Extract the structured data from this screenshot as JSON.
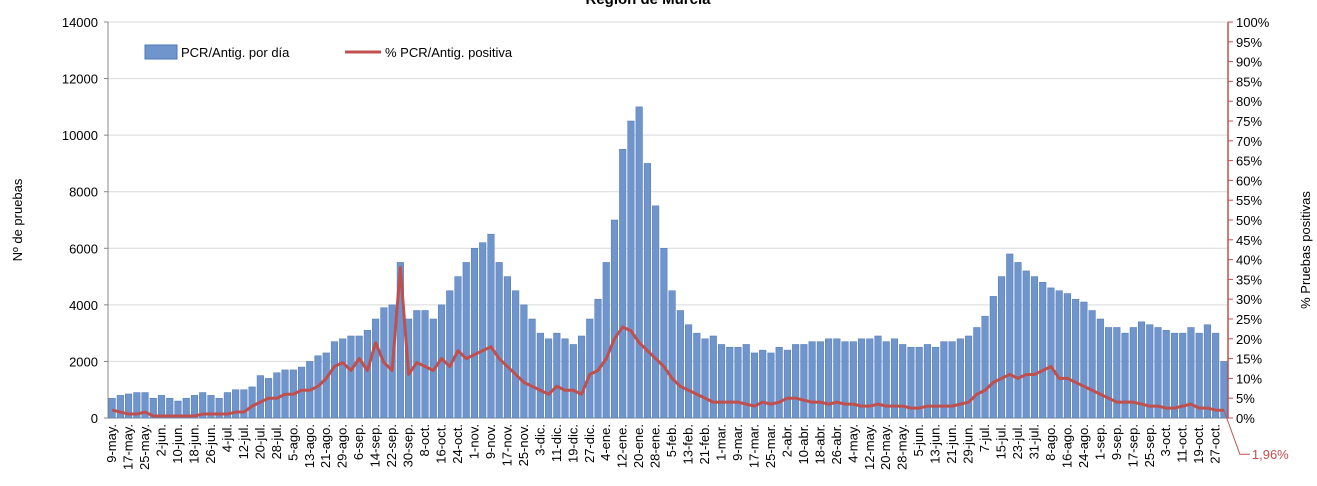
{
  "chart_data": {
    "type": "bar_line",
    "title": "Región de Murcia",
    "y_label": "Nº de pruebas",
    "y2_label": "% Pruebas positivas",
    "legend": "top-left",
    "grid": true,
    "categories": [
      "9-may.",
      null,
      "17-may.",
      null,
      "25-may.",
      null,
      "2-jun.",
      null,
      "10-jun.",
      null,
      "18-jun.",
      null,
      "26-jun.",
      null,
      "4-jul.",
      null,
      "12-jul.",
      null,
      "20-jul.",
      null,
      "28-jul.",
      null,
      "5-ago.",
      null,
      "13-ago.",
      null,
      "21-ago.",
      null,
      "29-ago.",
      null,
      "6-sep.",
      null,
      "14-sep.",
      null,
      "22-sep.",
      null,
      "30-sep.",
      null,
      "8-oct.",
      null,
      "16-oct.",
      null,
      "24-oct.",
      null,
      "1-nov.",
      null,
      "9-nov.",
      null,
      "17-nov.",
      null,
      "25-nov.",
      null,
      "3-dic.",
      null,
      "11-dic.",
      null,
      "19-dic.",
      null,
      "27-dic.",
      null,
      "4-ene.",
      null,
      "12-ene.",
      null,
      "20-ene.",
      null,
      "28-ene.",
      null,
      "5-feb.",
      null,
      "13-feb.",
      null,
      "21-feb.",
      null,
      "1-mar.",
      null,
      "9-mar.",
      null,
      "17-mar.",
      null,
      "25-mar.",
      null,
      "2-abr.",
      null,
      "10-abr.",
      null,
      "18-abr.",
      null,
      "26-abr.",
      null,
      "4-may.",
      null,
      "12-may.",
      null,
      "20-may.",
      null,
      "28-may.",
      null,
      "5-jun.",
      null,
      "13-jun.",
      null,
      "21-jun.",
      null,
      "29-jun.",
      null,
      "7-jul.",
      null,
      "15-jul.",
      null,
      "23-jul.",
      null,
      "31-jul.",
      null,
      "8-ago.",
      null,
      "16-ago.",
      null,
      "24-ago.",
      null,
      "1-sep.",
      null,
      "9-sep.",
      null,
      "17-sep.",
      null,
      "25-sep.",
      null,
      "3-oct.",
      null,
      "11-oct.",
      null,
      "19-oct.",
      null,
      "27-oct.",
      null
    ],
    "series": [
      {
        "name": "PCR/Antig. por día",
        "color": "#6f95cc",
        "kind": "bar",
        "values": [
          700,
          800,
          850,
          900,
          900,
          700,
          800,
          700,
          600,
          700,
          800,
          900,
          800,
          700,
          900,
          1000,
          1000,
          1100,
          1500,
          1400,
          1600,
          1700,
          1700,
          1800,
          2000,
          2200,
          2300,
          2700,
          2800,
          2900,
          2900,
          3100,
          3500,
          3900,
          4000,
          5500,
          3500,
          3800,
          3800,
          3500,
          4000,
          4500,
          5000,
          5500,
          6000,
          6200,
          6500,
          5500,
          5000,
          4500,
          4000,
          3500,
          3000,
          2800,
          3000,
          2800,
          2600,
          2900,
          3500,
          4200,
          5500,
          7000,
          9500,
          10500,
          11000,
          9000,
          7500,
          6000,
          4500,
          3800,
          3300,
          3000,
          2800,
          2900,
          2600,
          2500,
          2500,
          2600,
          2300,
          2400,
          2300,
          2500,
          2400,
          2600,
          2600,
          2700,
          2700,
          2800,
          2800,
          2700,
          2700,
          2800,
          2800,
          2900,
          2700,
          2800,
          2600,
          2500,
          2500,
          2600,
          2500,
          2700,
          2700,
          2800,
          2900,
          3200,
          3600,
          4300,
          5000,
          5800,
          5500,
          5200,
          5000,
          4800,
          4600,
          4500,
          4400,
          4200,
          4100,
          3800,
          3500,
          3200,
          3200,
          3000,
          3200,
          3400,
          3300,
          3200,
          3100,
          3000,
          3000,
          3200,
          3000,
          3300,
          3000,
          2000
        ]
      },
      {
        "name": "% PCR/Antig. positiva",
        "color": "#c0504d",
        "kind": "line",
        "axis": "y2",
        "values": [
          2,
          1.5,
          1,
          1,
          1.5,
          0.5,
          0.5,
          0.5,
          0.5,
          0.5,
          0.5,
          1,
          1,
          1,
          1,
          1.5,
          1.5,
          3,
          4,
          5,
          5,
          6,
          6,
          7,
          7,
          8,
          10,
          13,
          14,
          12,
          15,
          12,
          19,
          14,
          12,
          38,
          11,
          14,
          13,
          12,
          15,
          13,
          17,
          15,
          16,
          17,
          18,
          15,
          13,
          11,
          9,
          8,
          7,
          6,
          8,
          7,
          7,
          6,
          11,
          12,
          15,
          20,
          23,
          22,
          19,
          17,
          15,
          13,
          10,
          8,
          7,
          6,
          5,
          4,
          4,
          4,
          4,
          3.5,
          3,
          4,
          3.5,
          4,
          5,
          5,
          4.5,
          4,
          4,
          3.5,
          4,
          3.5,
          3.5,
          3,
          3,
          3.5,
          3,
          3,
          3,
          2.5,
          2.5,
          3,
          3,
          3,
          3,
          3.5,
          4,
          6,
          7,
          9,
          10,
          11,
          10,
          11,
          11,
          12,
          13,
          10,
          10,
          9,
          8,
          7,
          6,
          5,
          4,
          4,
          4,
          3.5,
          3,
          3,
          2.5,
          2.5,
          3,
          3.5,
          2.5,
          2.5,
          2,
          1.96
        ],
        "value_labels": [
          null,
          null,
          null,
          null,
          null,
          null,
          null,
          null,
          null,
          null,
          null,
          null,
          null,
          null,
          null,
          null,
          null,
          null,
          null,
          null,
          null,
          null,
          null,
          null,
          null,
          null,
          null,
          null,
          null,
          null,
          null,
          null,
          null,
          null,
          null,
          null,
          null,
          null,
          null,
          null,
          null,
          null,
          null,
          null,
          null,
          null,
          null,
          null,
          null,
          null,
          null,
          null,
          null,
          null,
          null,
          null,
          null,
          null,
          null,
          null,
          null,
          null,
          null,
          null,
          null,
          null,
          null,
          null,
          null,
          null,
          null,
          null,
          null,
          null,
          null,
          null,
          null,
          null,
          null,
          null,
          null,
          null,
          null,
          null,
          null,
          null,
          null,
          null,
          null,
          null,
          null,
          null,
          null,
          null,
          null,
          null,
          null,
          null,
          null,
          null,
          null,
          null,
          null,
          null,
          null,
          null,
          null,
          null,
          null,
          null,
          null,
          null,
          null,
          null,
          null,
          null,
          null,
          null,
          null,
          null,
          null,
          null,
          null,
          null,
          null,
          null,
          null,
          null,
          null,
          null,
          null,
          null,
          null,
          null,
          null,
          "1,96%"
        ]
      }
    ],
    "ylim": [
      0,
      14000
    ],
    "yticks": [
      0,
      2000,
      4000,
      6000,
      8000,
      10000,
      12000,
      14000
    ],
    "y2lim": [
      0,
      100
    ],
    "y2ticks": [
      {
        "value": 0,
        "label": "0%"
      },
      {
        "value": 5,
        "label": "5%"
      },
      {
        "value": 10,
        "label": "10%"
      },
      {
        "value": 15,
        "label": "15%"
      },
      {
        "value": 20,
        "label": "20%"
      },
      {
        "value": 25,
        "label": "25%"
      },
      {
        "value": 30,
        "label": "30%"
      },
      {
        "value": 35,
        "label": "35%"
      },
      {
        "value": 40,
        "label": "40%"
      },
      {
        "value": 45,
        "label": "45%"
      },
      {
        "value": 50,
        "label": "50%"
      },
      {
        "value": 55,
        "label": "55%"
      },
      {
        "value": 60,
        "label": "60%"
      },
      {
        "value": 65,
        "label": "65%"
      },
      {
        "value": 70,
        "label": "70%"
      },
      {
        "value": 75,
        "label": "75%"
      },
      {
        "value": 80,
        "label": "80%"
      },
      {
        "value": 85,
        "label": "85%"
      },
      {
        "value": 90,
        "label": "90%"
      },
      {
        "value": 95,
        "label": "95%"
      },
      {
        "value": 100,
        "label": "100%"
      }
    ]
  }
}
